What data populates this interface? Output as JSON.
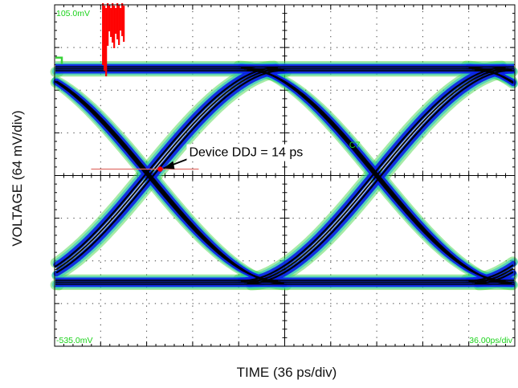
{
  "chart_data": {
    "type": "line",
    "title": "",
    "xlabel": "TIME (36 ps/div)",
    "ylabel": "VOLTAGE (64 mV/div)",
    "x_divisions": 10,
    "y_divisions": 8,
    "time_per_div_ps": 36,
    "volts_per_div_mV": 64,
    "grid": true,
    "readouts": {
      "top_left": "105.0mV",
      "bottom_left": "-535.0mV",
      "bottom_right": "36.00ps/div",
      "channel_marker": "C7"
    },
    "annotation": {
      "text": "Device DDJ = 14 ps",
      "value_ps": 14
    },
    "eye": {
      "high_level_div": 1.5,
      "low_level_div": 6.5,
      "crossings_div": [
        2.05,
        7.0
      ],
      "unit_interval_div": 4.95
    },
    "colors": {
      "grid": "#000000",
      "trace_core": "#000000",
      "trace_mid": "#0a1fe6",
      "trace_outer": "#23c2c2",
      "trace_fringe": "#39d33a",
      "overshoot": "#ff0000",
      "readout_text": "#19d219",
      "marker_line": "#e0706a"
    }
  }
}
